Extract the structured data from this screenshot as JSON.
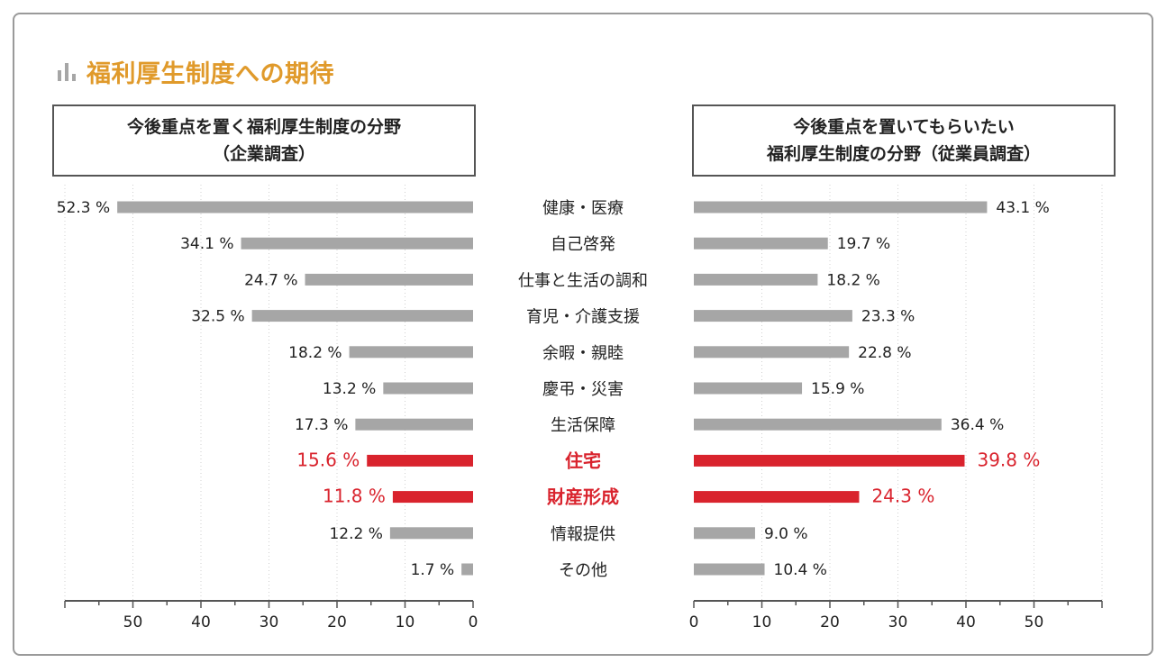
{
  "title": "福利厚生制度への期待",
  "left_panel": {
    "line1": "今後重点を置く福利厚生制度の分野",
    "line2": "（企業調査）"
  },
  "right_panel": {
    "line1": "今後重点を置いてもらいたい",
    "line2": "福利厚生制度の分野（従業員調査）"
  },
  "colors": {
    "title": "#e09a2b",
    "bar": "#a6a6a6",
    "highlight": "#d9232d",
    "text": "#222222"
  },
  "chart_data": {
    "type": "bar",
    "orientation": "horizontal-butterfly",
    "unit": "%",
    "categories": [
      "健康・医療",
      "自己啓発",
      "仕事と生活の調和",
      "育児・介護支援",
      "余暇・親睦",
      "慶弔・災害",
      "生活保障",
      "住宅",
      "財産形成",
      "情報提供",
      "その他"
    ],
    "highlighted_categories": [
      "住宅",
      "財産形成"
    ],
    "series": [
      {
        "name": "今後重点を置く福利厚生制度の分野（企業調査）",
        "side": "left",
        "values": [
          52.3,
          34.1,
          24.7,
          32.5,
          18.2,
          13.2,
          17.3,
          15.6,
          11.8,
          12.2,
          1.7
        ]
      },
      {
        "name": "今後重点を置いてもらいたい福利厚生制度の分野（従業員調査）",
        "side": "right",
        "values": [
          43.1,
          19.7,
          18.2,
          23.3,
          22.8,
          15.9,
          36.4,
          39.8,
          24.3,
          9.0,
          10.4
        ]
      }
    ],
    "left_axis": {
      "range": [
        0,
        60
      ],
      "ticks": [
        "50",
        "40",
        "30",
        "20",
        "10",
        "0"
      ],
      "tick_values": [
        50,
        40,
        30,
        20,
        10,
        0
      ]
    },
    "right_axis": {
      "range": [
        0,
        60
      ],
      "ticks": [
        "0",
        "10",
        "20",
        "30",
        "40",
        "50"
      ],
      "tick_values": [
        0,
        10,
        20,
        30,
        40,
        50
      ]
    },
    "grid": true
  }
}
